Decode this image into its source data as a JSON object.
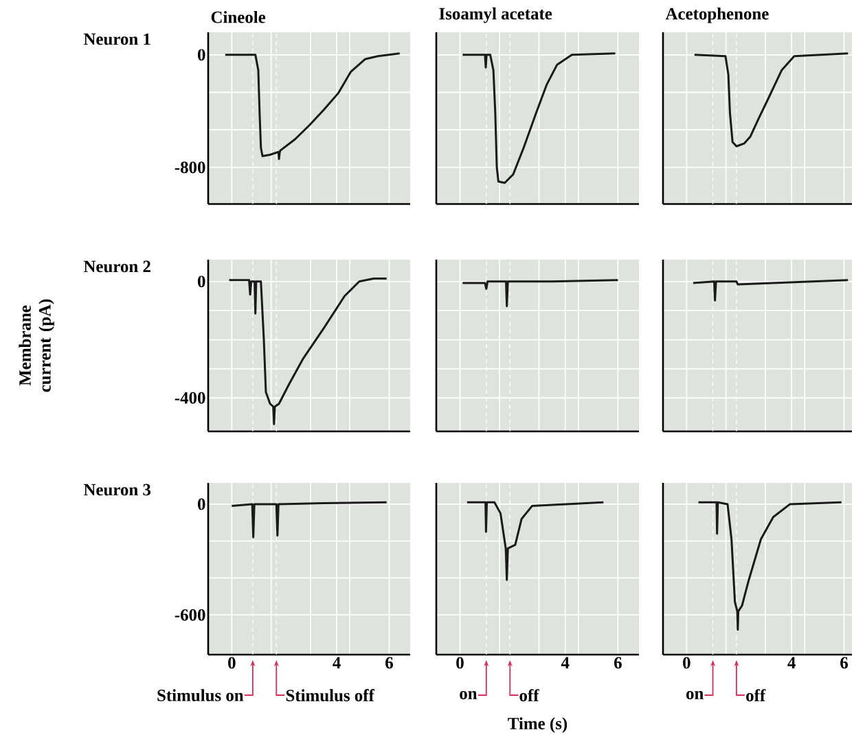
{
  "chart_data": [
    {
      "type": "line",
      "title": "Cineole",
      "annotations": [
        "Neuron 1"
      ],
      "color": "#1a1a1a",
      "grid": true,
      "tick_labels": "y",
      "xlim": [
        -0.9,
        6.8
      ],
      "ylim": [
        -1060,
        160
      ],
      "xticks": [
        0,
        {
          "value": 1.5,
          "label": null
        },
        {
          "value": 3,
          "label": null
        },
        4,
        {
          "value": 4.5,
          "label": null
        },
        6
      ],
      "yticks": [
        0,
        {
          "value": -267,
          "label": null
        },
        {
          "value": -533,
          "label": null
        },
        -800
      ],
      "ref_lines": [
        {
          "axis": "x",
          "value": 0.8,
          "color": "#ffffff",
          "line_style": "dashed"
        },
        {
          "axis": "x",
          "value": 1.7,
          "color": "#ffffff",
          "line_style": "dashed"
        }
      ],
      "x": [
        -0.25,
        0.9,
        1.01,
        1.06,
        1.11,
        1.17,
        1.46,
        1.78,
        1.8,
        1.83,
        1.85,
        2.41,
        2.96,
        3.51,
        4.07,
        4.54,
        5.09,
        5.57,
        6.4
      ],
      "values": [
        0,
        0,
        -110,
        -410,
        -660,
        -720,
        -710,
        -690,
        -740,
        -690,
        -680,
        -600,
        -500,
        -390,
        -270,
        -120,
        -30,
        -10,
        10
      ]
    },
    {
      "type": "line",
      "title": "Isoamyl acetate",
      "color": "#1a1a1a",
      "grid": true,
      "tick_labels": false,
      "xlim": [
        -0.9,
        6.8
      ],
      "ylim": [
        -1060,
        160
      ],
      "xticks": [
        0,
        {
          "value": 1.5,
          "label": null
        },
        {
          "value": 3,
          "label": null
        },
        4,
        {
          "value": 4.5,
          "label": null
        },
        6
      ],
      "yticks": [
        0,
        {
          "value": -267,
          "label": null
        },
        {
          "value": -533,
          "label": null
        },
        -800
      ],
      "ref_lines": [
        {
          "axis": "x",
          "value": 1.0,
          "color": "#ffffff",
          "line_style": "dashed"
        },
        {
          "axis": "x",
          "value": 1.9,
          "color": "#ffffff",
          "line_style": "dashed"
        }
      ],
      "x": [
        0.1,
        0.95,
        0.98,
        1.01,
        1.15,
        1.27,
        1.34,
        1.4,
        1.46,
        1.7,
        2.02,
        2.42,
        2.9,
        3.3,
        3.69,
        4.25,
        5.9
      ],
      "values": [
        0,
        0,
        -90,
        0,
        0,
        -110,
        -410,
        -800,
        -900,
        -910,
        -850,
        -660,
        -410,
        -210,
        -70,
        0,
        10
      ]
    },
    {
      "type": "line",
      "title": "Acetophenone",
      "color": "#1a1a1a",
      "grid": true,
      "tick_labels": false,
      "xlim": [
        -0.9,
        6.3
      ],
      "ylim": [
        -1060,
        160
      ],
      "xticks": [
        0,
        {
          "value": 1.5,
          "label": null
        },
        {
          "value": 3,
          "label": null
        },
        4,
        {
          "value": 4.5,
          "label": null
        },
        6
      ],
      "yticks": [
        0,
        {
          "value": -267,
          "label": null
        },
        {
          "value": -533,
          "label": null
        },
        -800
      ],
      "ref_lines": [
        {
          "axis": "x",
          "value": 1.0,
          "color": "#ffffff",
          "line_style": "dashed"
        },
        {
          "axis": "x",
          "value": 1.9,
          "color": "#ffffff",
          "line_style": "dashed"
        }
      ],
      "x": [
        0.3,
        1.48,
        1.59,
        1.65,
        1.75,
        1.9,
        2.19,
        2.43,
        2.75,
        3.14,
        3.62,
        4.1,
        6.15
      ],
      "values": [
        0,
        -10,
        -140,
        -410,
        -620,
        -650,
        -630,
        -580,
        -450,
        -300,
        -110,
        -10,
        10
      ]
    },
    {
      "type": "line",
      "annotations": [
        "Neuron 2"
      ],
      "ylabel": "Membrane current (pA)",
      "color": "#1a1a1a",
      "grid": true,
      "tick_labels": "y",
      "xlim": [
        -0.9,
        6.8
      ],
      "ylim": [
        -515,
        75
      ],
      "xticks": [
        0,
        {
          "value": 1.5,
          "label": null
        },
        {
          "value": 3,
          "label": null
        },
        4,
        {
          "value": 4.5,
          "label": null
        },
        6
      ],
      "yticks": [
        0,
        {
          "value": -100,
          "label": null
        },
        {
          "value": -200,
          "label": null
        },
        {
          "value": -300,
          "label": null
        },
        -400
      ],
      "ref_lines": [
        {
          "axis": "x",
          "value": 0.8,
          "color": "#ffffff",
          "line_style": "dashed"
        },
        {
          "axis": "x",
          "value": 1.7,
          "color": "#ffffff",
          "line_style": "dashed"
        }
      ],
      "x": [
        -0.1,
        0.66,
        0.7,
        0.74,
        0.87,
        0.9,
        0.93,
        1.11,
        1.22,
        1.3,
        1.46,
        1.58,
        1.61,
        1.64,
        1.8,
        2.17,
        2.72,
        3.51,
        4.3,
        4.86,
        5.41,
        5.9
      ],
      "values": [
        5,
        5,
        -45,
        0,
        0,
        -110,
        0,
        0,
        -195,
        -380,
        -420,
        -430,
        -490,
        -430,
        -420,
        -355,
        -265,
        -160,
        -50,
        0,
        10,
        10
      ]
    },
    {
      "type": "line",
      "color": "#1a1a1a",
      "grid": true,
      "tick_labels": false,
      "xlim": [
        -0.9,
        6.8
      ],
      "ylim": [
        -515,
        75
      ],
      "xticks": [
        0,
        {
          "value": 1.5,
          "label": null
        },
        {
          "value": 3,
          "label": null
        },
        4,
        {
          "value": 4.5,
          "label": null
        },
        6
      ],
      "yticks": [
        0,
        {
          "value": -100,
          "label": null
        },
        {
          "value": -200,
          "label": null
        },
        {
          "value": -300,
          "label": null
        },
        -400
      ],
      "ref_lines": [
        {
          "axis": "x",
          "value": 1.0,
          "color": "#ffffff",
          "line_style": "dashed"
        },
        {
          "axis": "x",
          "value": 1.9,
          "color": "#ffffff",
          "line_style": "dashed"
        }
      ],
      "x": [
        0.1,
        0.95,
        1.0,
        1.05,
        1.75,
        1.78,
        1.82,
        3.5,
        6.0
      ],
      "values": [
        -5,
        -5,
        -25,
        0,
        0,
        -85,
        0,
        0,
        5
      ]
    },
    {
      "type": "line",
      "color": "#1a1a1a",
      "grid": true,
      "tick_labels": false,
      "xlim": [
        -0.9,
        6.3
      ],
      "ylim": [
        -515,
        75
      ],
      "xticks": [
        0,
        {
          "value": 1.5,
          "label": null
        },
        {
          "value": 3,
          "label": null
        },
        4,
        {
          "value": 4.5,
          "label": null
        },
        6
      ],
      "yticks": [
        0,
        {
          "value": -100,
          "label": null
        },
        {
          "value": -200,
          "label": null
        },
        {
          "value": -300,
          "label": null
        },
        -400
      ],
      "ref_lines": [
        {
          "axis": "x",
          "value": 1.0,
          "color": "#ffffff",
          "line_style": "dashed"
        },
        {
          "axis": "x",
          "value": 1.9,
          "color": "#ffffff",
          "line_style": "dashed"
        }
      ],
      "x": [
        0.25,
        1.05,
        1.08,
        1.12,
        1.9,
        1.95,
        6.15
      ],
      "values": [
        -5,
        0,
        -65,
        0,
        0,
        -10,
        5
      ]
    },
    {
      "type": "line",
      "annotations": [
        "Neuron 3"
      ],
      "color": "#1a1a1a",
      "grid": true,
      "xlim": [
        -0.9,
        6.8
      ],
      "ylim": [
        -815,
        115
      ],
      "xticks": [
        0,
        {
          "value": 1.5,
          "label": null
        },
        {
          "value": 3,
          "label": null
        },
        4,
        {
          "value": 4.5,
          "label": null
        },
        6
      ],
      "yticks": [
        0,
        {
          "value": -200,
          "label": null
        },
        {
          "value": -400,
          "label": null
        },
        -600
      ],
      "ref_lines": [
        {
          "axis": "x",
          "value": 0.8,
          "color": "#ffffff",
          "line_style": "dashed",
          "label": "Stimulus on"
        },
        {
          "axis": "x",
          "value": 1.7,
          "color": "#ffffff",
          "line_style": "dashed",
          "label": "Stimulus off"
        }
      ],
      "x": [
        0,
        0.78,
        0.82,
        0.86,
        1.7,
        1.74,
        1.78,
        3.5,
        5.9
      ],
      "values": [
        -10,
        0,
        -180,
        0,
        0,
        -170,
        0,
        5,
        10
      ]
    },
    {
      "type": "line",
      "xlabel": "Time (s)",
      "color": "#1a1a1a",
      "grid": true,
      "tick_labels": "x",
      "xlim": [
        -0.9,
        6.8
      ],
      "ylim": [
        -815,
        115
      ],
      "xticks": [
        0,
        {
          "value": 1.5,
          "label": null
        },
        {
          "value": 3,
          "label": null
        },
        4,
        {
          "value": 4.5,
          "label": null
        },
        6
      ],
      "yticks": [
        0,
        {
          "value": -200,
          "label": null
        },
        {
          "value": -400,
          "label": null
        },
        -600
      ],
      "ref_lines": [
        {
          "axis": "x",
          "value": 1.0,
          "color": "#ffffff",
          "line_style": "dashed",
          "label": "on"
        },
        {
          "axis": "x",
          "value": 1.9,
          "color": "#ffffff",
          "line_style": "dashed",
          "label": "off"
        }
      ],
      "x": [
        0.27,
        0.97,
        0.99,
        1.02,
        1.31,
        1.54,
        1.74,
        1.78,
        1.82,
        2.1,
        2.34,
        2.74,
        5.45
      ],
      "values": [
        10,
        10,
        -150,
        10,
        10,
        -50,
        -240,
        -410,
        -240,
        -220,
        -80,
        -10,
        10
      ]
    },
    {
      "type": "line",
      "color": "#1a1a1a",
      "grid": true,
      "tick_labels": "x",
      "xlim": [
        -0.9,
        6.3
      ],
      "ylim": [
        -815,
        115
      ],
      "xticks": [
        0,
        {
          "value": 1.5,
          "label": null
        },
        {
          "value": 3,
          "label": null
        },
        4,
        {
          "value": 4.5,
          "label": null
        },
        6
      ],
      "yticks": [
        0,
        {
          "value": -200,
          "label": null
        },
        {
          "value": -400,
          "label": null
        },
        -600
      ],
      "ref_lines": [
        {
          "axis": "x",
          "value": 1.0,
          "color": "#ffffff",
          "line_style": "dashed",
          "label": "on"
        },
        {
          "axis": "x",
          "value": 1.9,
          "color": "#ffffff",
          "line_style": "dashed",
          "label": "off"
        }
      ],
      "x": [
        0.45,
        1.14,
        1.16,
        1.19,
        1.56,
        1.71,
        1.84,
        1.93,
        1.95,
        1.97,
        2.11,
        2.35,
        2.83,
        3.3,
        3.94,
        5.9
      ],
      "values": [
        10,
        10,
        -160,
        10,
        0,
        -190,
        -530,
        -580,
        -680,
        -580,
        -550,
        -420,
        -190,
        -70,
        0,
        10
      ]
    }
  ]
}
